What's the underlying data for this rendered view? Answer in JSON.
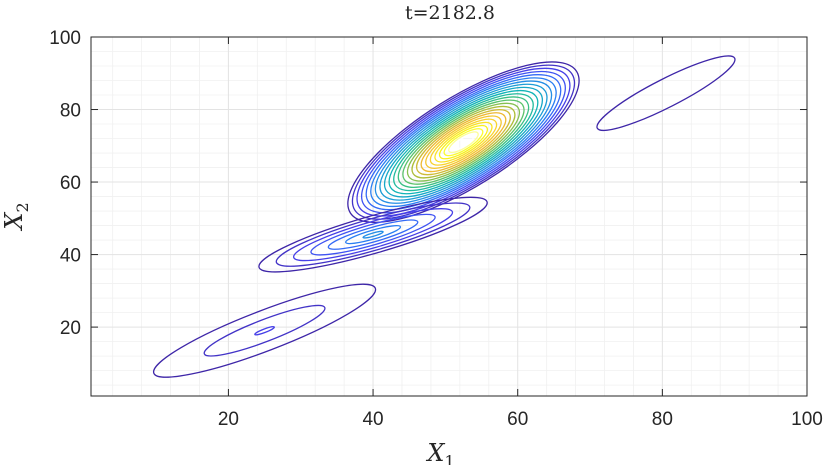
{
  "chart_data": {
    "type": "contour",
    "title": "t=2182.8",
    "xlabel": "X",
    "xlabel_sub": "1",
    "ylabel": "X",
    "ylabel_sub": "2",
    "xlim": [
      1,
      100
    ],
    "ylim": [
      1,
      100
    ],
    "xticks": [
      20,
      40,
      60,
      80,
      100
    ],
    "yticks": [
      20,
      40,
      60,
      80,
      100
    ],
    "grid": true,
    "minor_grid": true,
    "colormap": "parula",
    "colormap_colors": [
      "#3e26a8",
      "#4743f0",
      "#2d78f8",
      "#1e9cd8",
      "#10b6b4",
      "#46c378",
      "#a8bf3c",
      "#f1b932",
      "#f9d92e",
      "#f9fb14",
      "#ffffff"
    ],
    "modes": [
      {
        "cx": 52.5,
        "cy": 71,
        "sx": 9,
        "sy": 6,
        "angle": 32,
        "n_levels": 24
      },
      {
        "cx": 40,
        "cy": 45.5,
        "sx": 8,
        "sy": 2.5,
        "angle": 16,
        "n_levels": 7
      },
      {
        "cx": 25,
        "cy": 19,
        "sx": 8,
        "sy": 2.7,
        "angle": 21,
        "n_levels": 3
      },
      {
        "cx": 80.5,
        "cy": 84.5,
        "sx": 5.2,
        "sy": 1.9,
        "angle": 27,
        "n_levels": 1
      }
    ]
  }
}
